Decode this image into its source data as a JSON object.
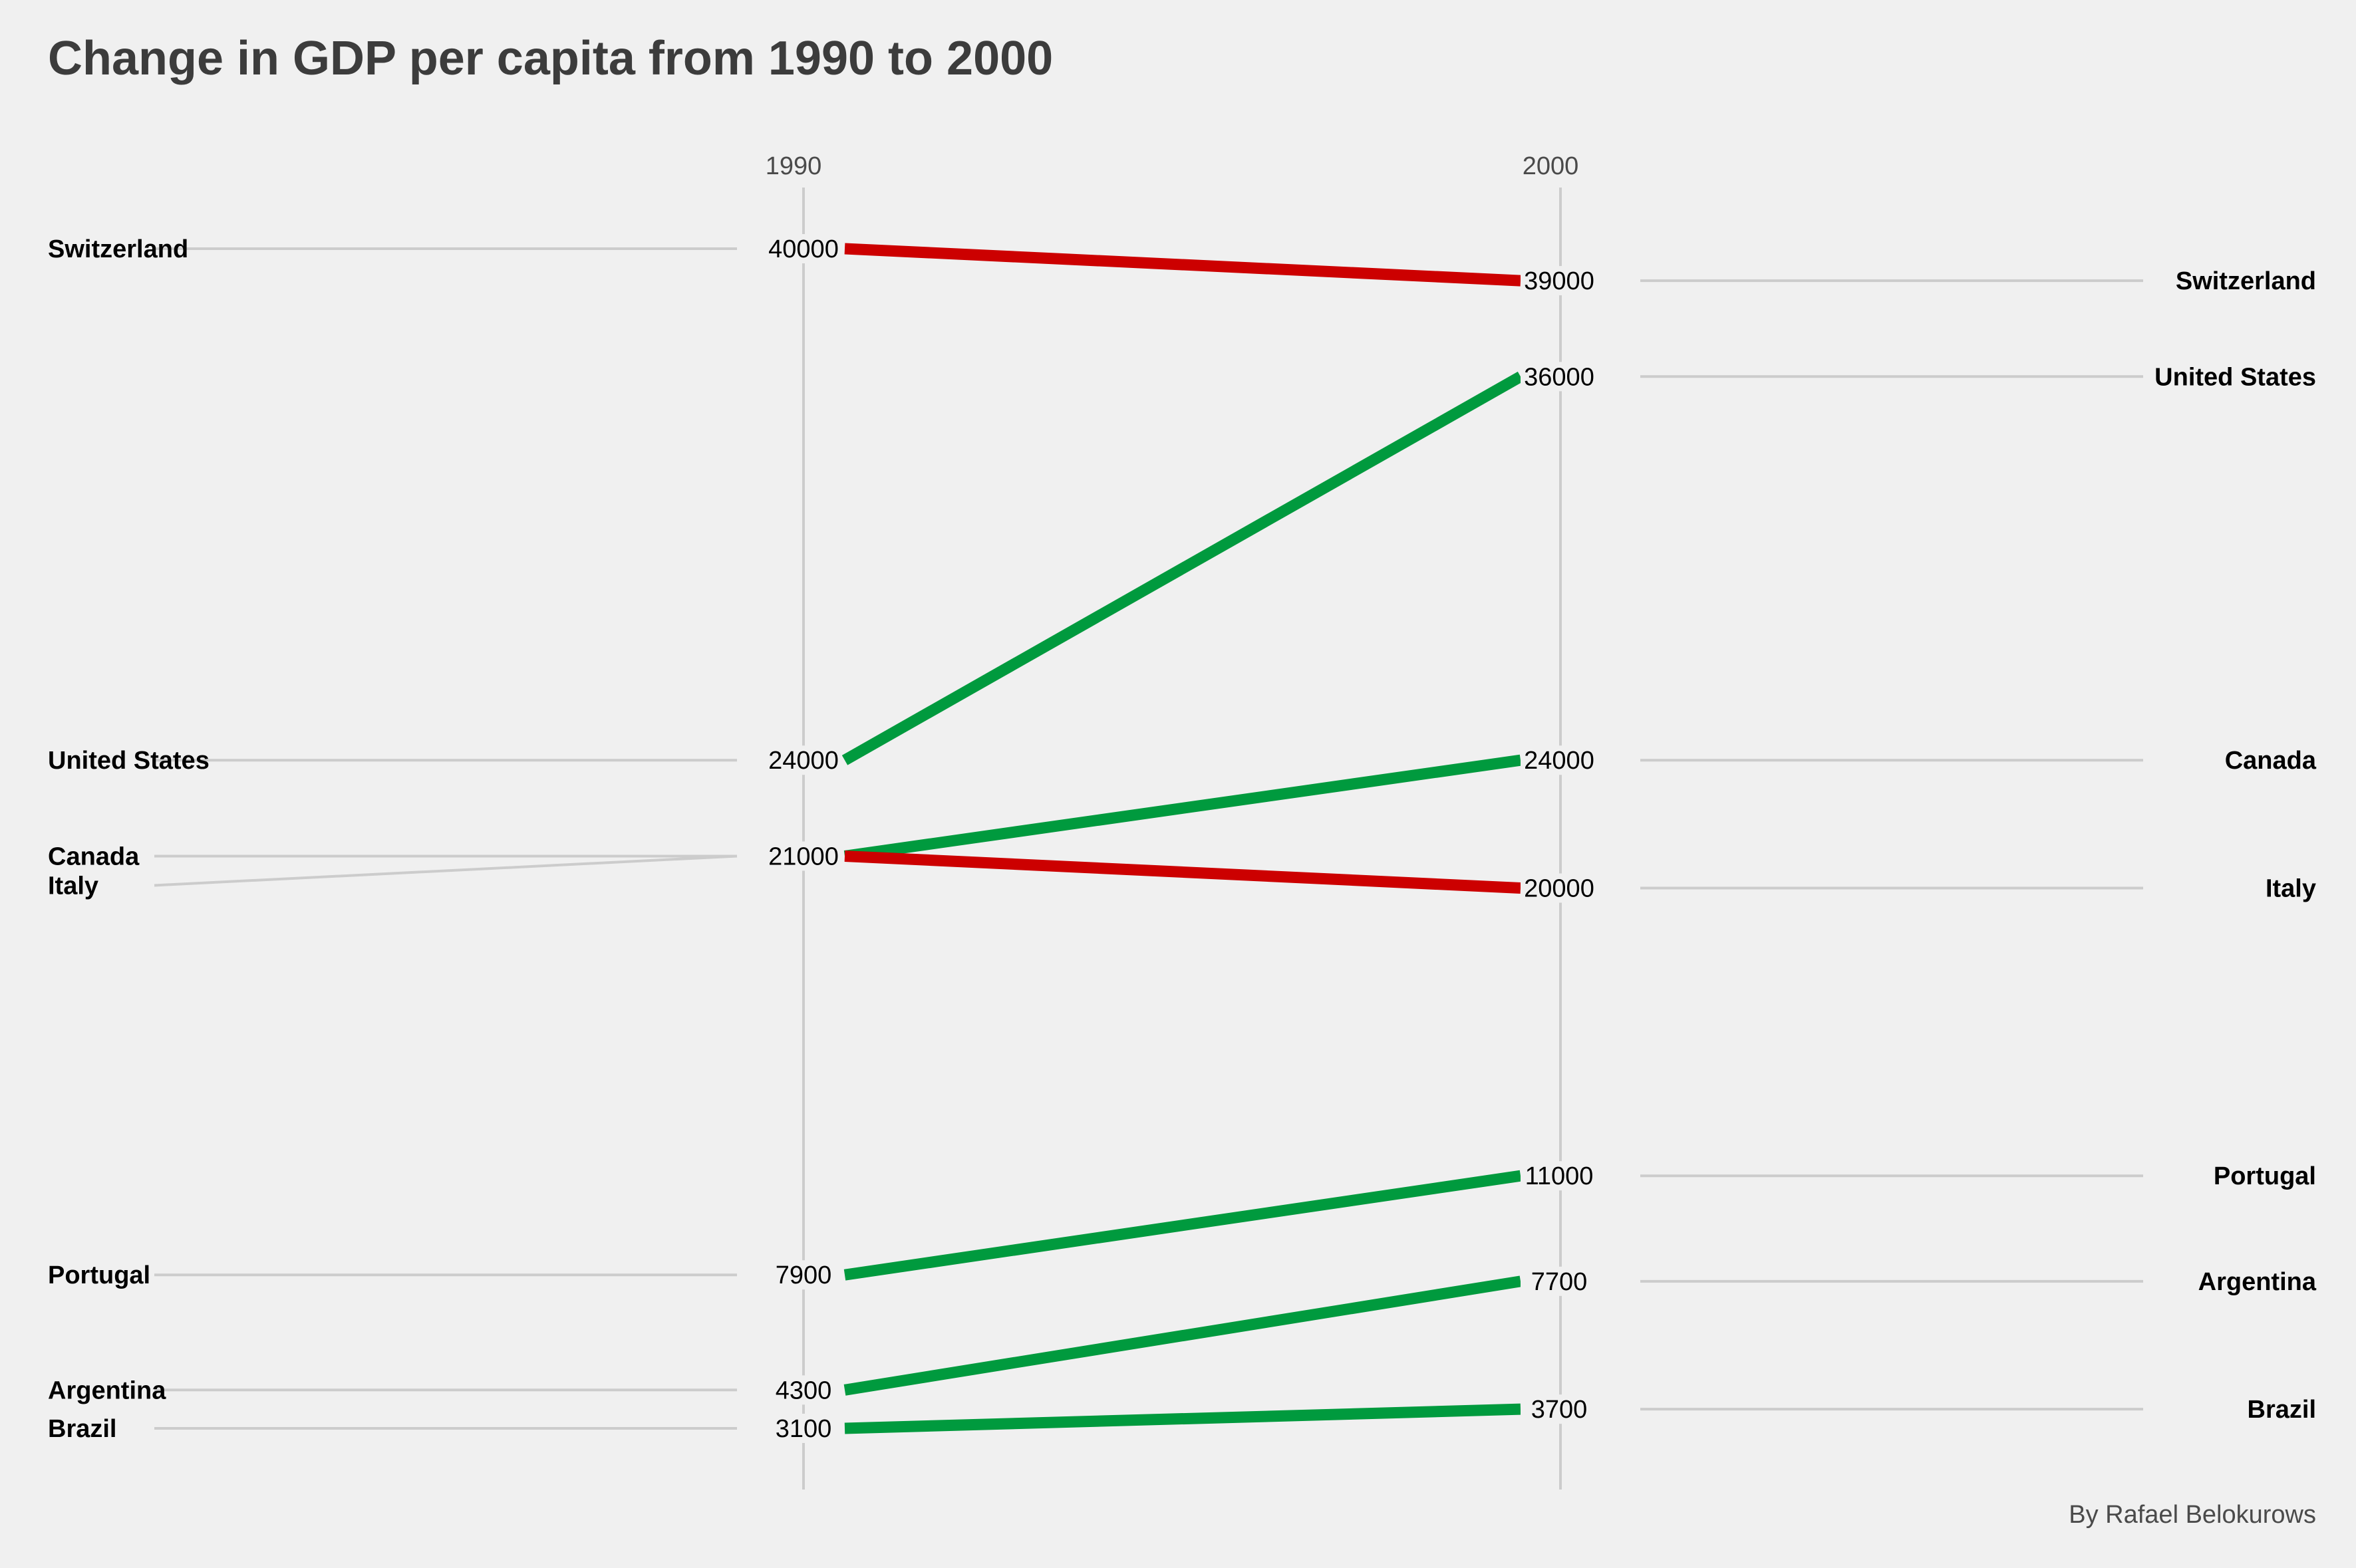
{
  "chart_data": {
    "type": "line",
    "title": "Change in GDP per capita from 1990 to 2000",
    "caption": "By Rafael Belokurows",
    "x": [
      "1990",
      "2000"
    ],
    "series": [
      {
        "name": "Switzerland",
        "values": [
          40000,
          39000
        ],
        "color": "#cc0000"
      },
      {
        "name": "United States",
        "values": [
          24000,
          36000
        ],
        "color": "#009a3e"
      },
      {
        "name": "Canada",
        "values": [
          21000,
          24000
        ],
        "color": "#009a3e"
      },
      {
        "name": "Italy",
        "values": [
          21000,
          20000
        ],
        "color": "#cc0000"
      },
      {
        "name": "Portugal",
        "values": [
          7900,
          11000
        ],
        "color": "#009a3e"
      },
      {
        "name": "Argentina",
        "values": [
          4300,
          7700
        ],
        "color": "#009a3e"
      },
      {
        "name": "Brazil",
        "values": [
          3100,
          3700
        ],
        "color": "#009a3e"
      }
    ],
    "ylim": [
      3100,
      40000
    ],
    "grid": false,
    "legend": "none",
    "colors": {
      "increase": "#009a3e",
      "decrease": "#cc0000",
      "background": "#f0f0f0",
      "guide_lines": "#cccccc"
    }
  }
}
